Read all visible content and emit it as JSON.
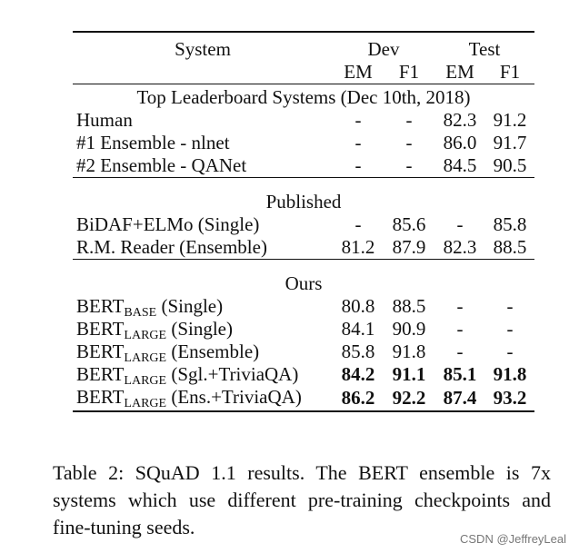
{
  "table": {
    "header": {
      "system": "System",
      "dev": "Dev",
      "test": "Test",
      "em": "EM",
      "f1": "F1"
    },
    "sections": {
      "leaderboard": "Top Leaderboard Systems (Dec 10th, 2018)",
      "published": "Published",
      "ours": "Ours"
    },
    "leaderboard_rows": [
      {
        "system": "Human",
        "dev_em": "-",
        "dev_f1": "-",
        "test_em": "82.3",
        "test_f1": "91.2"
      },
      {
        "system": "#1 Ensemble - nlnet",
        "dev_em": "-",
        "dev_f1": "-",
        "test_em": "86.0",
        "test_f1": "91.7"
      },
      {
        "system": "#2 Ensemble - QANet",
        "dev_em": "-",
        "dev_f1": "-",
        "test_em": "84.5",
        "test_f1": "90.5"
      }
    ],
    "published_rows": [
      {
        "system": "BiDAF+ELMo (Single)",
        "dev_em": "-",
        "dev_f1": "85.6",
        "test_em": "-",
        "test_f1": "85.8"
      },
      {
        "system": "R.M. Reader (Ensemble)",
        "dev_em": "81.2",
        "dev_f1": "87.9",
        "test_em": "82.3",
        "test_f1": "88.5"
      }
    ],
    "ours_rows": [
      {
        "base": "BERT",
        "sub": "BASE",
        "suffix": " (Single)",
        "dev_em": "80.8",
        "dev_f1": "88.5",
        "test_em": "-",
        "test_f1": "-"
      },
      {
        "base": "BERT",
        "sub": "LARGE",
        "suffix": " (Single)",
        "dev_em": "84.1",
        "dev_f1": "90.9",
        "test_em": "-",
        "test_f1": "-"
      },
      {
        "base": "BERT",
        "sub": "LARGE",
        "suffix": " (Ensemble)",
        "dev_em": "85.8",
        "dev_f1": "91.8",
        "test_em": "-",
        "test_f1": "-"
      },
      {
        "base": "BERT",
        "sub": "LARGE",
        "suffix": " (Sgl.+TriviaQA)",
        "dev_em": "84.2",
        "dev_f1": "91.1",
        "test_em": "85.1",
        "test_f1": "91.8"
      },
      {
        "base": "BERT",
        "sub": "LARGE",
        "suffix": " (Ens.+TriviaQA)",
        "dev_em": "86.2",
        "dev_f1": "92.2",
        "test_em": "87.4",
        "test_f1": "93.2"
      }
    ]
  },
  "caption": "Table 2:   SQuAD 1.1 results.  The BERT ensemble is 7x systems which use different pre-training checkpoints and fine-tuning seeds.",
  "watermark": "CSDN @JeffreyLeal"
}
